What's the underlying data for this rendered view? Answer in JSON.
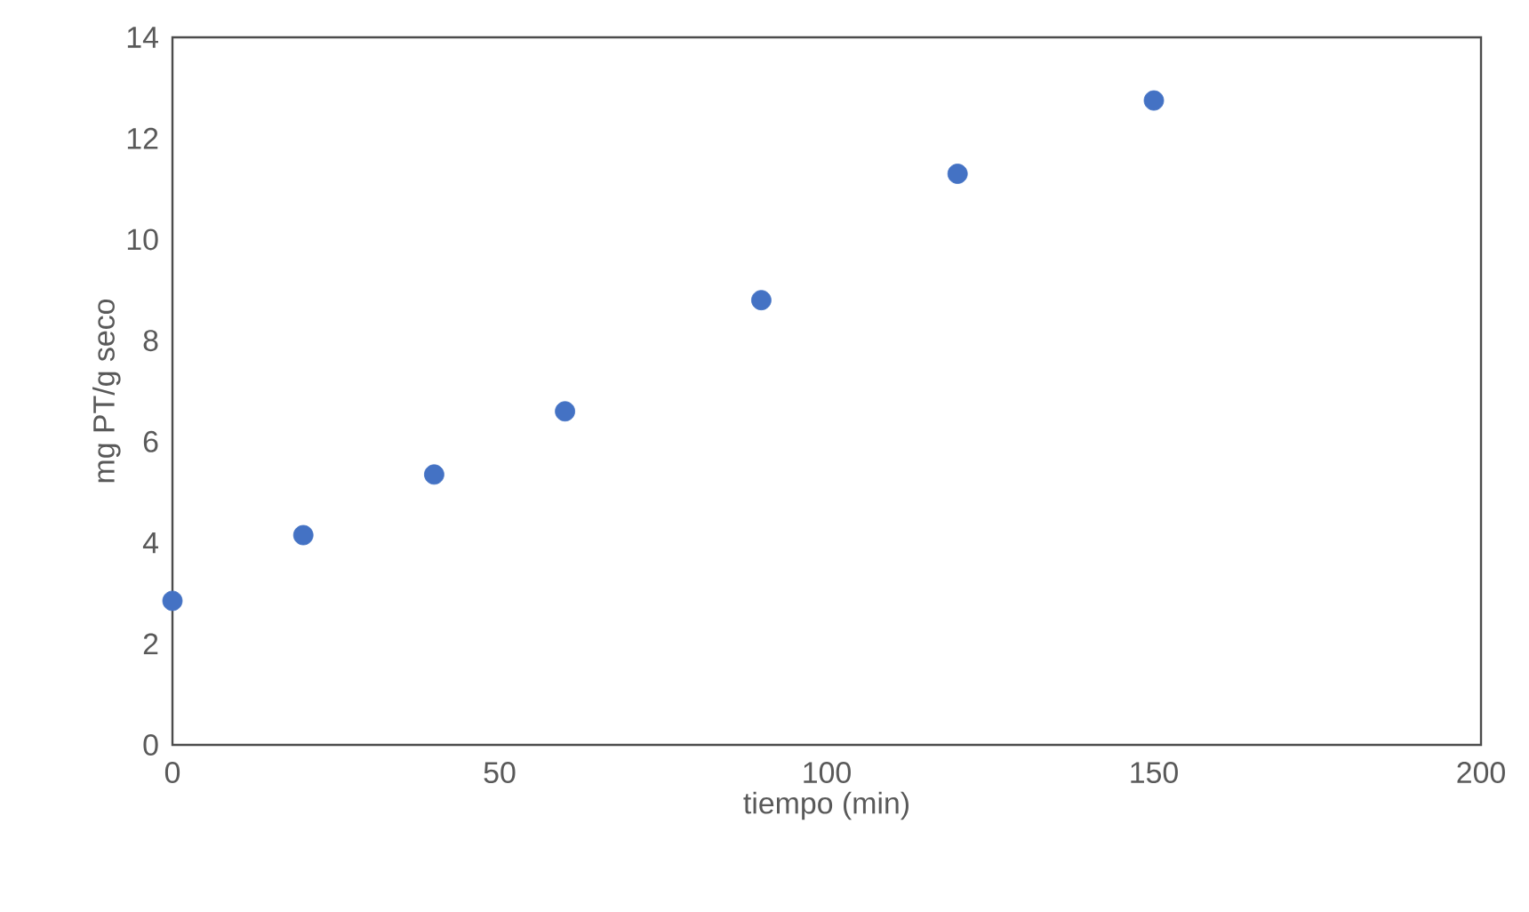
{
  "chart_data": {
    "type": "scatter",
    "xlabel": "tiempo (min)",
    "ylabel": "mg PT/g seco",
    "x": [
      0,
      20,
      40,
      60,
      90,
      120,
      150
    ],
    "values": [
      2.85,
      4.15,
      5.35,
      6.6,
      8.8,
      11.3,
      12.75
    ],
    "color": "#4472c4",
    "xlim": [
      0,
      200
    ],
    "xticks": [
      0,
      50,
      100,
      150,
      200
    ],
    "ylim": [
      0,
      14
    ],
    "yticks": [
      0,
      2,
      4,
      6,
      8,
      10,
      12,
      14
    ],
    "grid": false
  }
}
